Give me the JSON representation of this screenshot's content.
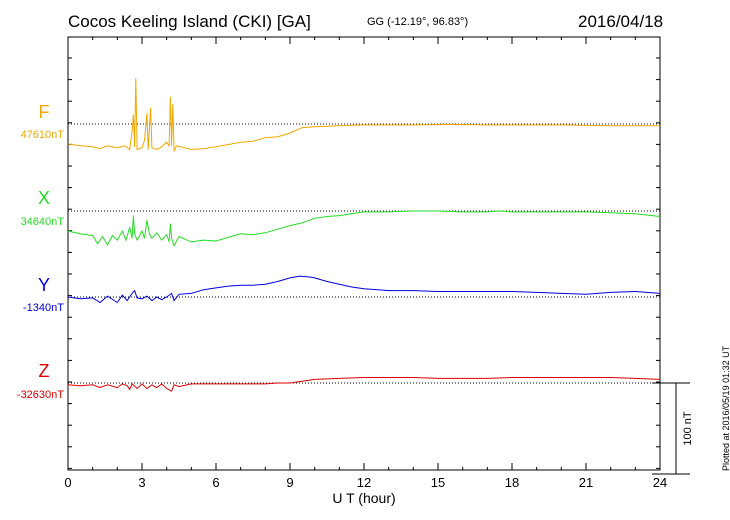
{
  "header": {
    "station": "Cocos Keeling Island (CKI)  [GA]",
    "coords": "GG (-12.19°,  96.83°)",
    "date": "2016/04/18"
  },
  "side_note": "Plotted at 2016/05/19 01:32 UT",
  "chart_data": {
    "type": "line",
    "xlabel": "U T (hour)",
    "xlim": [
      0,
      24
    ],
    "x_ticks": [
      0,
      3,
      6,
      9,
      12,
      15,
      18,
      21,
      24
    ],
    "x_tick_labels": [
      "0",
      "3",
      "6",
      "9",
      "12",
      "15",
      "18",
      "21",
      "24"
    ],
    "scale_bar_label": "100 nT",
    "scale_bar_nT": 100,
    "grid": false,
    "series": [
      {
        "name": "F",
        "baseline_label": "47610nT",
        "baseline_nT": 47610,
        "color": "#f0a800",
        "points": [
          [
            0,
            -22
          ],
          [
            0.5,
            -24
          ],
          [
            1,
            -25
          ],
          [
            1.3,
            -27
          ],
          [
            1.6,
            -24
          ],
          [
            2,
            -26
          ],
          [
            2.3,
            -24
          ],
          [
            2.5,
            -28
          ],
          [
            2.6,
            -8
          ],
          [
            2.65,
            10
          ],
          [
            2.7,
            -25
          ],
          [
            2.75,
            50
          ],
          [
            2.8,
            -28
          ],
          [
            3,
            -26
          ],
          [
            3.1,
            -18
          ],
          [
            3.2,
            12
          ],
          [
            3.25,
            -28
          ],
          [
            3.3,
            -6
          ],
          [
            3.35,
            18
          ],
          [
            3.4,
            -26
          ],
          [
            3.6,
            -28
          ],
          [
            3.8,
            -25
          ],
          [
            4,
            -20
          ],
          [
            4.1,
            -24
          ],
          [
            4.15,
            30
          ],
          [
            4.2,
            -24
          ],
          [
            4.25,
            22
          ],
          [
            4.3,
            -30
          ],
          [
            4.4,
            -24
          ],
          [
            5,
            -28
          ],
          [
            5.5,
            -27
          ],
          [
            6,
            -25
          ],
          [
            7,
            -20
          ],
          [
            7.5,
            -19
          ],
          [
            8,
            -15
          ],
          [
            8.5,
            -14
          ],
          [
            9,
            -10
          ],
          [
            9.5,
            -4
          ],
          [
            10,
            -3
          ],
          [
            11,
            -2
          ],
          [
            12,
            -1
          ],
          [
            13,
            -1
          ],
          [
            14,
            -1
          ],
          [
            15,
            -0.5
          ],
          [
            16,
            -0.5
          ],
          [
            17,
            -1
          ],
          [
            18,
            -1
          ],
          [
            19,
            -1
          ],
          [
            20,
            -1
          ],
          [
            21,
            -1.5
          ],
          [
            22,
            -2
          ],
          [
            23,
            -2
          ],
          [
            24,
            -2
          ]
        ]
      },
      {
        "name": "X",
        "baseline_label": "34640nT",
        "baseline_nT": 34640,
        "color": "#22dd22",
        "points": [
          [
            0,
            -22
          ],
          [
            0.5,
            -25
          ],
          [
            1,
            -27
          ],
          [
            1.2,
            -36
          ],
          [
            1.4,
            -28
          ],
          [
            1.6,
            -37
          ],
          [
            1.8,
            -27
          ],
          [
            2,
            -32
          ],
          [
            2.2,
            -22
          ],
          [
            2.35,
            -32
          ],
          [
            2.5,
            -18
          ],
          [
            2.6,
            -30
          ],
          [
            2.65,
            -5
          ],
          [
            2.7,
            -25
          ],
          [
            2.8,
            -32
          ],
          [
            3,
            -22
          ],
          [
            3.1,
            -30
          ],
          [
            3.2,
            -10
          ],
          [
            3.3,
            -25
          ],
          [
            3.4,
            -30
          ],
          [
            3.6,
            -24
          ],
          [
            3.8,
            -32
          ],
          [
            4,
            -26
          ],
          [
            4.1,
            -34
          ],
          [
            4.15,
            -14
          ],
          [
            4.2,
            -30
          ],
          [
            4.3,
            -38
          ],
          [
            4.5,
            -28
          ],
          [
            5,
            -34
          ],
          [
            5.5,
            -32
          ],
          [
            6,
            -33
          ],
          [
            7,
            -25
          ],
          [
            7.5,
            -26
          ],
          [
            8,
            -24
          ],
          [
            8.5,
            -20
          ],
          [
            9,
            -16
          ],
          [
            9.5,
            -13
          ],
          [
            10,
            -8
          ],
          [
            10.5,
            -6
          ],
          [
            11,
            -5
          ],
          [
            11.5,
            -3
          ],
          [
            12,
            -1
          ],
          [
            13,
            -1
          ],
          [
            14,
            0
          ],
          [
            15,
            0
          ],
          [
            16,
            -1
          ],
          [
            17,
            -1
          ],
          [
            17.5,
            0
          ],
          [
            18,
            -1
          ],
          [
            19,
            -1
          ],
          [
            20,
            -1
          ],
          [
            21,
            -1
          ],
          [
            22,
            -2
          ],
          [
            23,
            -3
          ],
          [
            24,
            -6
          ]
        ]
      },
      {
        "name": "Y",
        "baseline_label": "-1340nT",
        "baseline_nT": -1340,
        "color": "#0000dd",
        "points": [
          [
            0,
            0
          ],
          [
            0.5,
            -2
          ],
          [
            1,
            -1
          ],
          [
            1.3,
            -6
          ],
          [
            1.6,
            1
          ],
          [
            2,
            -6
          ],
          [
            2.2,
            2
          ],
          [
            2.4,
            -4
          ],
          [
            2.6,
            4
          ],
          [
            2.7,
            7
          ],
          [
            2.8,
            -1
          ],
          [
            3,
            -2
          ],
          [
            3.2,
            1
          ],
          [
            3.4,
            -4
          ],
          [
            3.6,
            0
          ],
          [
            3.8,
            -3
          ],
          [
            4,
            0
          ],
          [
            4.2,
            4
          ],
          [
            4.3,
            -4
          ],
          [
            4.5,
            3
          ],
          [
            5,
            4
          ],
          [
            5.5,
            8
          ],
          [
            6,
            10
          ],
          [
            6.5,
            12
          ],
          [
            7,
            13
          ],
          [
            7.5,
            13
          ],
          [
            8,
            14
          ],
          [
            8.5,
            17
          ],
          [
            9,
            21
          ],
          [
            9.4,
            23
          ],
          [
            9.8,
            22
          ],
          [
            10,
            21
          ],
          [
            10.5,
            17
          ],
          [
            11,
            14
          ],
          [
            11.5,
            11
          ],
          [
            12,
            9
          ],
          [
            13,
            7
          ],
          [
            14,
            7
          ],
          [
            15,
            6
          ],
          [
            16,
            6
          ],
          [
            17,
            6
          ],
          [
            18,
            6
          ],
          [
            19,
            5
          ],
          [
            20,
            4
          ],
          [
            21,
            3
          ],
          [
            22,
            5
          ],
          [
            23,
            6
          ],
          [
            24,
            4
          ]
        ]
      },
      {
        "name": "Z",
        "baseline_label": "-32630nT",
        "baseline_nT": -32630,
        "color": "#dd0000",
        "points": [
          [
            0,
            -2
          ],
          [
            0.5,
            -3
          ],
          [
            1,
            -2
          ],
          [
            1.3,
            -5
          ],
          [
            1.6,
            -2
          ],
          [
            2,
            -5
          ],
          [
            2.2,
            -1
          ],
          [
            2.4,
            -3
          ],
          [
            2.5,
            -7
          ],
          [
            2.6,
            -1
          ],
          [
            2.8,
            -6
          ],
          [
            3,
            -1
          ],
          [
            3.2,
            -6
          ],
          [
            3.4,
            -2
          ],
          [
            3.6,
            -5
          ],
          [
            3.8,
            -1
          ],
          [
            4,
            -6
          ],
          [
            4.2,
            -9
          ],
          [
            4.3,
            -2
          ],
          [
            4.5,
            -4
          ],
          [
            5,
            -1
          ],
          [
            6,
            -1
          ],
          [
            7,
            -1
          ],
          [
            8,
            -1
          ],
          [
            8.5,
            0
          ],
          [
            9,
            0
          ],
          [
            9.5,
            2
          ],
          [
            10,
            4
          ],
          [
            11,
            5
          ],
          [
            12,
            6
          ],
          [
            13,
            6
          ],
          [
            14,
            6
          ],
          [
            15,
            5
          ],
          [
            16,
            5
          ],
          [
            17,
            5
          ],
          [
            18,
            6
          ],
          [
            19,
            6
          ],
          [
            20,
            6
          ],
          [
            21,
            6
          ],
          [
            22,
            6
          ],
          [
            23,
            5
          ],
          [
            24,
            4
          ]
        ]
      }
    ]
  }
}
